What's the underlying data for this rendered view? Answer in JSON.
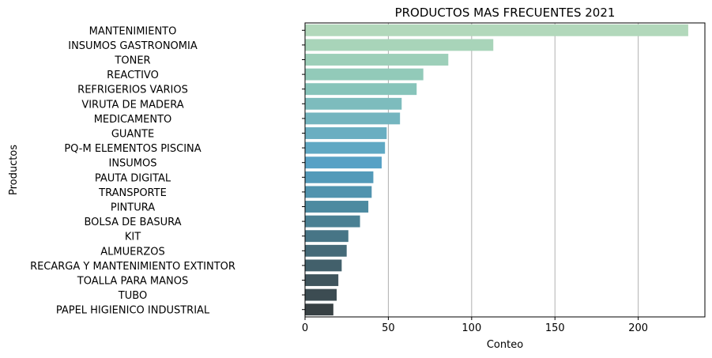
{
  "chart_data": {
    "type": "bar",
    "orientation": "horizontal",
    "title": "PRODUCTOS MAS FRECUENTES 2021",
    "xlabel": "Conteo",
    "ylabel": "Productos",
    "xlim": [
      0,
      240
    ],
    "xticks": [
      0,
      50,
      100,
      150,
      200
    ],
    "grid": "x",
    "categories": [
      "MANTENIMIENTO",
      "INSUMOS GASTRONOMIA",
      "TONER",
      "REACTIVO",
      "REFRIGERIOS VARIOS",
      "VIRUTA DE MADERA",
      "MEDICAMENTO",
      "GUANTE",
      "PQ-M ELEMENTOS PISCINA",
      "INSUMOS",
      "PAUTA DIGITAL",
      "TRANSPORTE",
      "PINTURA",
      "BOLSA DE BASURA",
      "KIT",
      "ALMUERZOS",
      "RECARGA Y MANTENIMIENTO EXTINTOR",
      "TOALLA PARA MANOS",
      "TUBO",
      "PAPEL HIGIENICO INDUSTRIAL"
    ],
    "values": [
      230,
      113,
      86,
      71,
      67,
      58,
      57,
      49,
      48,
      46,
      41,
      40,
      38,
      33,
      26,
      25,
      22,
      20,
      19,
      17
    ],
    "colors": [
      "#b2d8bb",
      "#a8d4b9",
      "#9dcfb9",
      "#92cab9",
      "#87c4ba",
      "#7dbcbd",
      "#74b5bf",
      "#6aaec1",
      "#60a8c3",
      "#57a1c5",
      "#539ab9",
      "#5093ae",
      "#4c8aa0",
      "#4a8093",
      "#477586",
      "#456a78",
      "#42606b",
      "#40555d",
      "#3c4c52",
      "#384144"
    ]
  }
}
